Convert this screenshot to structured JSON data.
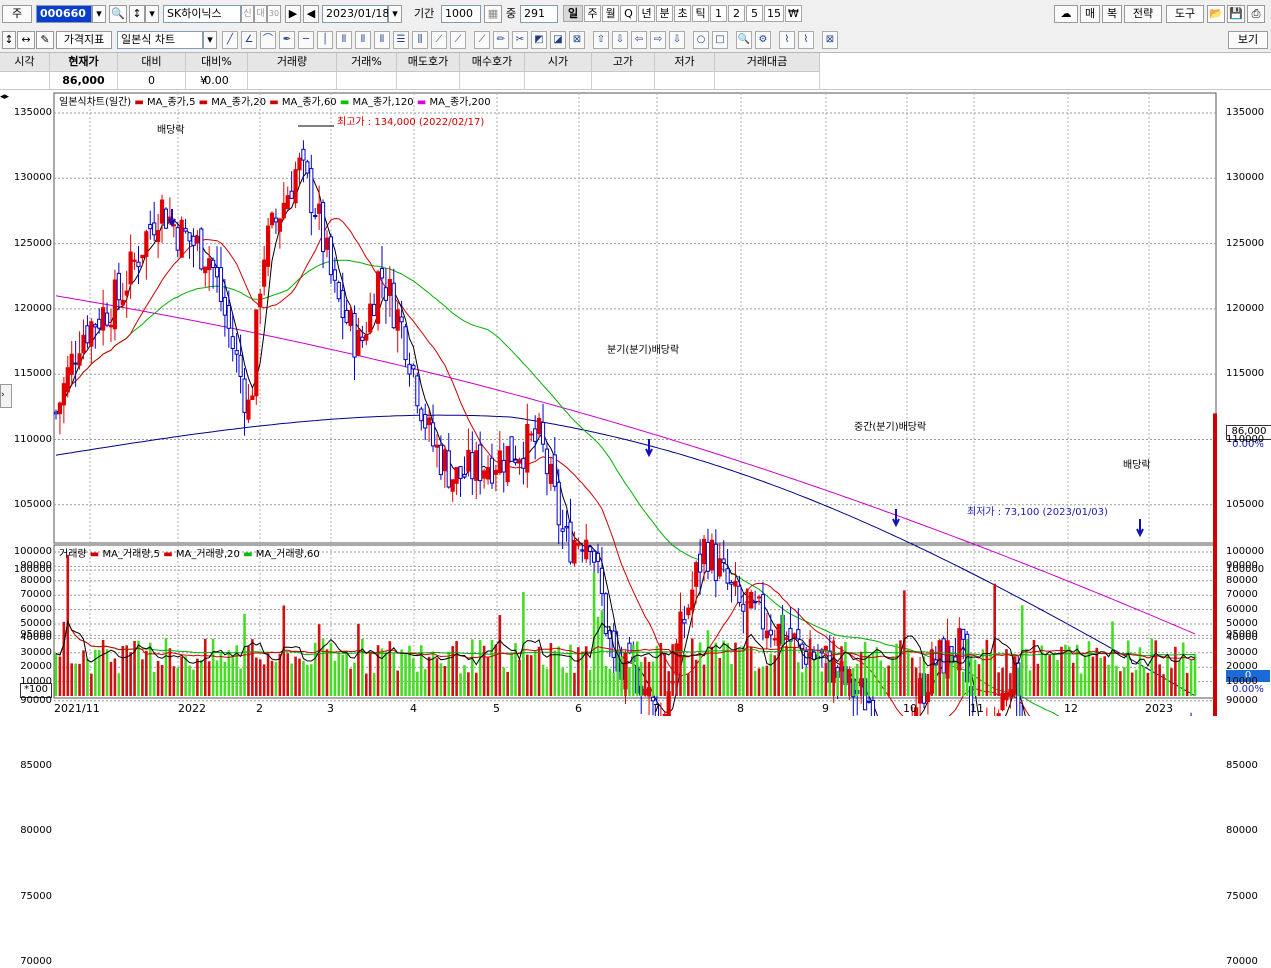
{
  "toolbar": {
    "type_label": "주",
    "code": "000660",
    "stock_name": "SK하이닉스",
    "credit_badge": "신",
    "loan_badge": "대",
    "margin_badge": "30",
    "date": "2023/01/18",
    "period_label": "기간",
    "period_value": "1000",
    "count_label": "중",
    "count_value": "291",
    "periods": [
      "일",
      "주",
      "월",
      "Q",
      "년",
      "분",
      "초",
      "틱",
      "1",
      "2",
      "5",
      "15",
      "₩"
    ],
    "active_period": "일",
    "right_buttons": [
      "매",
      "복",
      "전략",
      "도구"
    ]
  },
  "toolbar2": {
    "indicator_label": "가격지표",
    "chart_type": "일본식 차트",
    "view_label": "보기"
  },
  "quote": {
    "headers": [
      "시각",
      "현재가",
      "대비",
      "대비%",
      "거래량",
      "거래%",
      "매도호가",
      "매수호가",
      "시가",
      "고가",
      "저가",
      "거래대금"
    ],
    "values": [
      "",
      "86,000",
      "0",
      "0.00",
      "",
      "",
      "",
      "",
      "",
      "",
      "",
      ""
    ],
    "change_prefix": "¥"
  },
  "price_chart": {
    "legend_title": "일본식차트(일간)",
    "legend_items": [
      {
        "name": "MA_종가,5",
        "color": "#cc0000"
      },
      {
        "name": "MA_종가,20",
        "color": "#cc0000"
      },
      {
        "name": "MA_종가,60",
        "color": "#cc0000"
      },
      {
        "name": "MA_종가,120",
        "color": "#00c000"
      },
      {
        "name": "MA_종가,200",
        "color": "#dd00dd"
      }
    ],
    "y_ticks": [
      "135000",
      "130000",
      "125000",
      "120000",
      "115000",
      "110000",
      "105000",
      "100000",
      "95000",
      "90000",
      "85000",
      "80000",
      "75000",
      "70000"
    ],
    "annotations": {
      "high": "최고가 : 134,000 (2022/02/17)",
      "low": "최저가 : 73,100 (2023/01/03)",
      "div1": "배당락",
      "div2": "분기(분기)배당락",
      "div3": "중간(분기)배당락",
      "div4": "배당락"
    },
    "current_price": "86,000",
    "current_pct": "0.00%"
  },
  "volume_chart": {
    "legend_title": "거래량",
    "legend_items": [
      {
        "name": "MA_거래량,5",
        "color": "#cc0000"
      },
      {
        "name": "MA_거래량,20",
        "color": "#cc0000"
      },
      {
        "name": "MA_거래량,60",
        "color": "#00c000"
      }
    ],
    "y_ticks": [
      "100000",
      "90000",
      "80000",
      "70000",
      "60000",
      "50000",
      "40000",
      "30000",
      "20000",
      "10000",
      "0"
    ],
    "unit": "*100",
    "current_value": "0",
    "current_pct": "0.00%"
  },
  "x_labels": [
    "2021/11",
    "2022",
    "2",
    "3",
    "4",
    "5",
    "6",
    "7",
    "8",
    "9",
    "10",
    "11",
    "12",
    "2023"
  ],
  "colors": {
    "up": "#e00000",
    "down": "#0000cc",
    "ma5": "#000000",
    "ma20": "#d00000",
    "ma60": "#00b000",
    "ma120": "#00008b",
    "ma200": "#cc00cc",
    "vol_up": "#d01010",
    "vol_down": "#44dd22"
  },
  "chart_data": {
    "type": "candlestick",
    "x_range": [
      "2021/11",
      "2023/01"
    ],
    "y_range": [
      70000,
      135000
    ],
    "approx_close_by_month": [
      {
        "x": "2021/11",
        "close": 112000
      },
      {
        "x": "2022/01",
        "close": 126000
      },
      {
        "x": "2022/02",
        "close": 130000
      },
      {
        "x": "2022/03",
        "close": 120000
      },
      {
        "x": "2022/04",
        "close": 110000
      },
      {
        "x": "2022/05",
        "close": 109000
      },
      {
        "x": "2022/06",
        "close": 95000
      },
      {
        "x": "2022/07",
        "close": 99000
      },
      {
        "x": "2022/08",
        "close": 97000
      },
      {
        "x": "2022/09",
        "close": 82000
      },
      {
        "x": "2022/10",
        "close": 90000
      },
      {
        "x": "2022/11",
        "close": 83000
      },
      {
        "x": "2022/12",
        "close": 77000
      },
      {
        "x": "2023/01",
        "close": 86000
      }
    ]
  }
}
